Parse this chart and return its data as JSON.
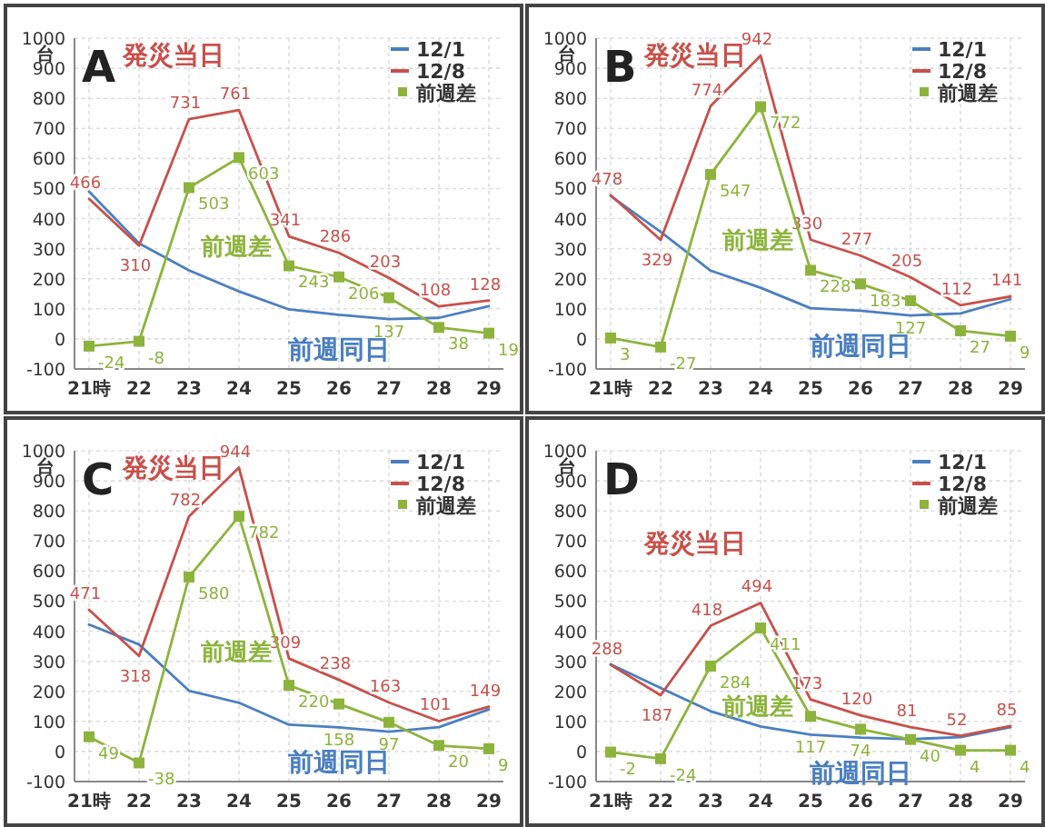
{
  "chart_data": [
    {
      "type": "line",
      "title": "A",
      "ylabel": "台",
      "categories": [
        "21時",
        "22",
        "23",
        "24",
        "25",
        "26",
        "27",
        "28",
        "29"
      ],
      "ylim": [
        -100,
        1000
      ],
      "yticks": [
        -100,
        0,
        100,
        200,
        300,
        400,
        500,
        600,
        700,
        800,
        900,
        1000
      ],
      "grid": true,
      "legend": "top right",
      "series": [
        {
          "name": "12/1",
          "color": "#4a7fc1",
          "marker": "none",
          "values": [
            490,
            318,
            228,
            158,
            98,
            80,
            66,
            70,
            109
          ]
        },
        {
          "name": "12/8",
          "color": "#c8504a",
          "marker": "none",
          "values": [
            466,
            310,
            731,
            761,
            341,
            286,
            203,
            108,
            128
          ],
          "value_labels": [
            "466",
            "310",
            "731",
            "761",
            "341",
            "286",
            "203",
            "108",
            "128"
          ]
        },
        {
          "name": "前週差",
          "color": "#8cb43c",
          "marker": "square",
          "values": [
            -24,
            -8,
            503,
            603,
            243,
            206,
            137,
            38,
            19
          ],
          "value_labels": [
            "-24",
            "-8",
            "503",
            "603",
            "243",
            "206",
            "137",
            "38",
            "19"
          ]
        }
      ],
      "annotations": [
        "発災当日",
        "前週差",
        "前週同日"
      ]
    },
    {
      "type": "line",
      "title": "B",
      "ylabel": "台",
      "categories": [
        "21時",
        "22",
        "23",
        "24",
        "25",
        "26",
        "27",
        "28",
        "29"
      ],
      "ylim": [
        -100,
        1000
      ],
      "yticks": [
        -100,
        0,
        100,
        200,
        300,
        400,
        500,
        600,
        700,
        800,
        900,
        1000
      ],
      "grid": true,
      "legend": "top right",
      "series": [
        {
          "name": "12/1",
          "color": "#4a7fc1",
          "marker": "none",
          "values": [
            475,
            356,
            227,
            170,
            102,
            94,
            78,
            85,
            132
          ]
        },
        {
          "name": "12/8",
          "color": "#c8504a",
          "marker": "none",
          "values": [
            478,
            329,
            774,
            942,
            330,
            277,
            205,
            112,
            141
          ],
          "value_labels": [
            "478",
            "329",
            "774",
            "942",
            "330",
            "277",
            "205",
            "112",
            "141"
          ]
        },
        {
          "name": "前週差",
          "color": "#8cb43c",
          "marker": "square",
          "values": [
            3,
            -27,
            547,
            772,
            228,
            183,
            127,
            27,
            9
          ],
          "value_labels": [
            "3",
            "-27",
            "547",
            "772",
            "228",
            "183",
            "127",
            "27",
            "9"
          ]
        }
      ],
      "annotations": [
        "発災当日",
        "前週差",
        "前週同日"
      ]
    },
    {
      "type": "line",
      "title": "C",
      "ylabel": "台",
      "categories": [
        "21時",
        "22",
        "23",
        "24",
        "25",
        "26",
        "27",
        "28",
        "29"
      ],
      "ylim": [
        -100,
        1000
      ],
      "yticks": [
        -100,
        0,
        100,
        200,
        300,
        400,
        500,
        600,
        700,
        800,
        900,
        1000
      ],
      "grid": true,
      "legend": "top right",
      "series": [
        {
          "name": "12/1",
          "color": "#4a7fc1",
          "marker": "none",
          "values": [
            422,
            356,
            202,
            162,
            89,
            80,
            66,
            81,
            140
          ]
        },
        {
          "name": "12/8",
          "color": "#c8504a",
          "marker": "none",
          "values": [
            471,
            318,
            782,
            944,
            309,
            238,
            163,
            101,
            149
          ],
          "value_labels": [
            "471",
            "318",
            "782",
            "944",
            "309",
            "238",
            "163",
            "101",
            "149"
          ]
        },
        {
          "name": "前週差",
          "color": "#8cb43c",
          "marker": "square",
          "values": [
            49,
            -38,
            580,
            782,
            220,
            158,
            97,
            20,
            9
          ],
          "value_labels": [
            "49",
            "-38",
            "580",
            "782",
            "220",
            "158",
            "97",
            "20",
            "9"
          ]
        }
      ],
      "annotations": [
        "発災当日",
        "前週差",
        "前週同日"
      ]
    },
    {
      "type": "line",
      "title": "D",
      "ylabel": "台",
      "categories": [
        "21時",
        "22",
        "23",
        "24",
        "25",
        "26",
        "27",
        "28",
        "29"
      ],
      "ylim": [
        -100,
        1000
      ],
      "yticks": [
        -100,
        0,
        100,
        200,
        300,
        400,
        500,
        600,
        700,
        800,
        900,
        1000
      ],
      "grid": true,
      "legend": "top right",
      "series": [
        {
          "name": "12/1",
          "color": "#4a7fc1",
          "marker": "none",
          "values": [
            290,
            211,
            134,
            83,
            56,
            46,
            41,
            48,
            81
          ]
        },
        {
          "name": "12/8",
          "color": "#c8504a",
          "marker": "none",
          "values": [
            288,
            187,
            418,
            494,
            173,
            120,
            81,
            52,
            85
          ],
          "value_labels": [
            "288",
            "187",
            "418",
            "494",
            "173",
            "120",
            "81",
            "52",
            "85"
          ]
        },
        {
          "name": "前週差",
          "color": "#8cb43c",
          "marker": "square",
          "values": [
            -2,
            -24,
            284,
            411,
            117,
            74,
            40,
            4,
            4
          ],
          "value_labels": [
            "-2",
            "-24",
            "284",
            "411",
            "117",
            "74",
            "40",
            "4",
            "4"
          ]
        }
      ],
      "annotations": [
        "発災当日",
        "前週差",
        "前週同日"
      ]
    }
  ]
}
